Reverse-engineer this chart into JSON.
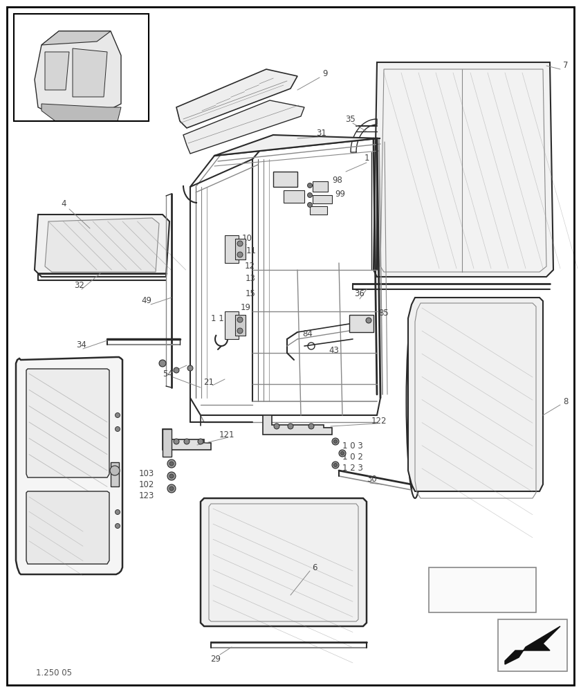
{
  "background_color": "#ffffff",
  "page_number": "1.250 05",
  "line_color": "#2a2a2a",
  "gray_color": "#888888",
  "light_line": "#aaaaaa"
}
